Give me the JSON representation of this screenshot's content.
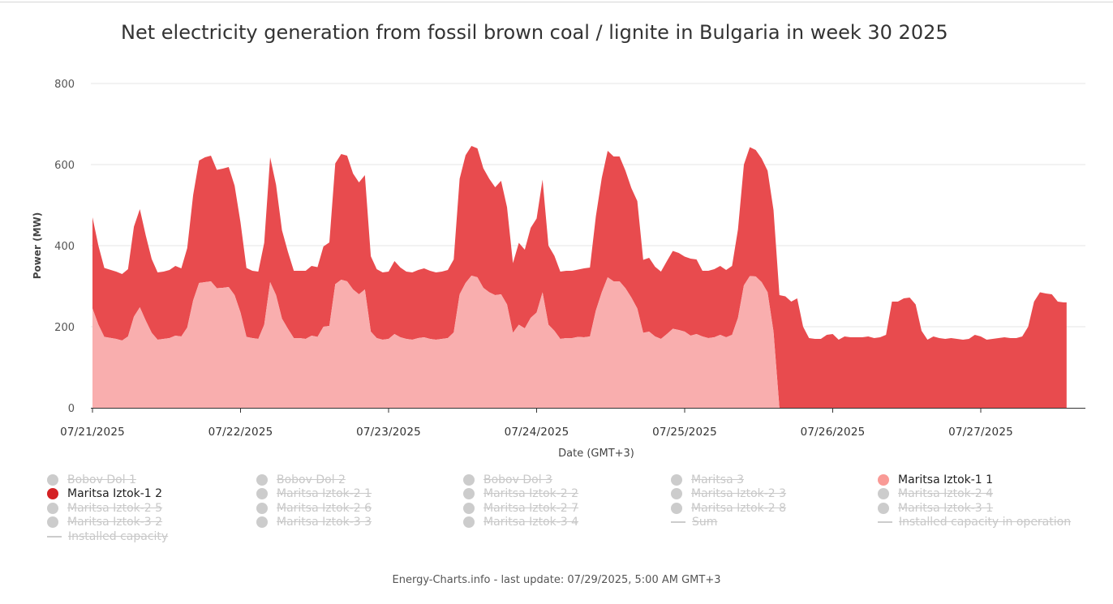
{
  "title": "Net electricity generation from fossil brown coal / lignite in Bulgaria in week 30 2025",
  "footer": "Energy-Charts.info - last update: 07/29/2025, 5:00 AM GMT+3",
  "colors": {
    "Maritsa Iztok-1 1": "#f9aeae",
    "Maritsa Iztok-1 2": "#e84b4e",
    "legend_dot_1_2": "#d42124",
    "inactive": "#cccccc"
  },
  "legend": [
    {
      "label": "Bobov Dol 1",
      "active": false,
      "symbol": "dot"
    },
    {
      "label": "Bobov Dol 2",
      "active": false,
      "symbol": "dot"
    },
    {
      "label": "Bobov Dol 3",
      "active": false,
      "symbol": "dot"
    },
    {
      "label": "Maritsa 3",
      "active": false,
      "symbol": "dot"
    },
    {
      "label": "Maritsa Iztok-1 1",
      "active": true,
      "symbol": "dot",
      "color": "#f99a96"
    },
    {
      "label": "Maritsa Iztok-1 2",
      "active": true,
      "symbol": "dot",
      "color": "#d42124"
    },
    {
      "label": "Maritsa Iztok-2 1",
      "active": false,
      "symbol": "dot"
    },
    {
      "label": "Maritsa Iztok-2 2",
      "active": false,
      "symbol": "dot"
    },
    {
      "label": "Maritsa Iztok-2 3",
      "active": false,
      "symbol": "dot"
    },
    {
      "label": "Maritsa Iztok-2 4",
      "active": false,
      "symbol": "dot"
    },
    {
      "label": "Maritsa Iztok-2 5",
      "active": false,
      "symbol": "dot"
    },
    {
      "label": "Maritsa Iztok-2 6",
      "active": false,
      "symbol": "dot"
    },
    {
      "label": "Maritsa Iztok-2 7",
      "active": false,
      "symbol": "dot"
    },
    {
      "label": "Maritsa Iztok-2 8",
      "active": false,
      "symbol": "dot"
    },
    {
      "label": "Maritsa Iztok-3 1",
      "active": false,
      "symbol": "dot"
    },
    {
      "label": "Maritsa Iztok-3 2",
      "active": false,
      "symbol": "dot"
    },
    {
      "label": "Maritsa Iztok-3 3",
      "active": false,
      "symbol": "dot"
    },
    {
      "label": "Maritsa Iztok-3 4",
      "active": false,
      "symbol": "dot"
    },
    {
      "label": "Sum",
      "active": false,
      "symbol": "line"
    },
    {
      "label": "Installed capacity in operation",
      "active": false,
      "symbol": "line"
    },
    {
      "label": "Installed capacity",
      "active": false,
      "symbol": "line"
    }
  ],
  "chart_data": {
    "type": "area",
    "stacked": true,
    "title": "Net electricity generation from fossil brown coal / lignite in Bulgaria in week 30 2025",
    "xlabel": "Date (GMT+3)",
    "ylabel": "Power (MW)",
    "ylim": [
      0,
      800
    ],
    "yticks": [
      0,
      200,
      400,
      600,
      800
    ],
    "xlim": [
      0,
      6.71
    ],
    "x_unit": "days from 07/21/2025 00:00",
    "x_tick_labels": [
      "07/21/2025",
      "07/22/2025",
      "07/23/2025",
      "07/24/2025",
      "07/25/2025",
      "07/26/2025",
      "07/27/2025"
    ],
    "grid": true,
    "series": [
      {
        "name": "Maritsa Iztok-1 1",
        "points": [
          [
            0.0,
            245
          ],
          [
            0.04,
            205
          ],
          [
            0.08,
            175
          ],
          [
            0.16,
            170
          ],
          [
            0.2,
            166
          ],
          [
            0.24,
            176
          ],
          [
            0.28,
            225
          ],
          [
            0.32,
            248
          ],
          [
            0.36,
            215
          ],
          [
            0.4,
            185
          ],
          [
            0.44,
            168
          ],
          [
            0.48,
            170
          ],
          [
            0.52,
            172
          ],
          [
            0.56,
            178
          ],
          [
            0.6,
            176
          ],
          [
            0.64,
            198
          ],
          [
            0.68,
            265
          ],
          [
            0.72,
            308
          ],
          [
            0.76,
            310
          ],
          [
            0.8,
            312
          ],
          [
            0.84,
            295
          ],
          [
            0.88,
            296
          ],
          [
            0.92,
            298
          ],
          [
            0.96,
            278
          ],
          [
            1.0,
            235
          ],
          [
            1.04,
            175
          ],
          [
            1.08,
            172
          ],
          [
            1.12,
            170
          ],
          [
            1.16,
            205
          ],
          [
            1.2,
            310
          ],
          [
            1.24,
            278
          ],
          [
            1.28,
            220
          ],
          [
            1.32,
            195
          ],
          [
            1.36,
            172
          ],
          [
            1.4,
            172
          ],
          [
            1.44,
            170
          ],
          [
            1.48,
            178
          ],
          [
            1.52,
            175
          ],
          [
            1.56,
            200
          ],
          [
            1.6,
            202
          ],
          [
            1.64,
            305
          ],
          [
            1.68,
            316
          ],
          [
            1.72,
            312
          ],
          [
            1.76,
            292
          ],
          [
            1.8,
            280
          ],
          [
            1.84,
            292
          ],
          [
            1.88,
            188
          ],
          [
            1.92,
            172
          ],
          [
            1.96,
            168
          ],
          [
            2.0,
            170
          ],
          [
            2.04,
            182
          ],
          [
            2.08,
            174
          ],
          [
            2.12,
            170
          ],
          [
            2.16,
            168
          ],
          [
            2.2,
            172
          ],
          [
            2.24,
            174
          ],
          [
            2.28,
            170
          ],
          [
            2.32,
            168
          ],
          [
            2.36,
            170
          ],
          [
            2.4,
            172
          ],
          [
            2.44,
            186
          ],
          [
            2.48,
            280
          ],
          [
            2.52,
            308
          ],
          [
            2.56,
            326
          ],
          [
            2.6,
            322
          ],
          [
            2.64,
            296
          ],
          [
            2.68,
            285
          ],
          [
            2.72,
            278
          ],
          [
            2.76,
            280
          ],
          [
            2.8,
            255
          ],
          [
            2.84,
            185
          ],
          [
            2.88,
            205
          ],
          [
            2.92,
            196
          ],
          [
            2.96,
            222
          ],
          [
            3.0,
            235
          ],
          [
            3.04,
            285
          ],
          [
            3.08,
            205
          ],
          [
            3.12,
            190
          ],
          [
            3.16,
            170
          ],
          [
            3.2,
            172
          ],
          [
            3.24,
            172
          ],
          [
            3.28,
            175
          ],
          [
            3.32,
            174
          ],
          [
            3.36,
            176
          ],
          [
            3.4,
            240
          ],
          [
            3.44,
            285
          ],
          [
            3.48,
            322
          ],
          [
            3.52,
            312
          ],
          [
            3.56,
            312
          ],
          [
            3.6,
            295
          ],
          [
            3.64,
            272
          ],
          [
            3.68,
            245
          ],
          [
            3.72,
            185
          ],
          [
            3.76,
            188
          ],
          [
            3.8,
            176
          ],
          [
            3.84,
            170
          ],
          [
            3.88,
            182
          ],
          [
            3.92,
            195
          ],
          [
            3.96,
            192
          ],
          [
            4.0,
            188
          ],
          [
            4.04,
            178
          ],
          [
            4.08,
            182
          ],
          [
            4.12,
            176
          ],
          [
            4.16,
            172
          ],
          [
            4.2,
            174
          ],
          [
            4.24,
            180
          ],
          [
            4.28,
            174
          ],
          [
            4.32,
            180
          ],
          [
            4.36,
            222
          ],
          [
            4.4,
            302
          ],
          [
            4.44,
            325
          ],
          [
            4.48,
            324
          ],
          [
            4.52,
            310
          ],
          [
            4.56,
            285
          ],
          [
            4.6,
            188
          ],
          [
            4.64,
            0
          ]
        ]
      },
      {
        "name": "Maritsa Iztok-1 2",
        "points": [
          [
            0.0,
            225
          ],
          [
            0.04,
            195
          ],
          [
            0.08,
            170
          ],
          [
            0.16,
            166
          ],
          [
            0.2,
            164
          ],
          [
            0.24,
            166
          ],
          [
            0.28,
            222
          ],
          [
            0.32,
            242
          ],
          [
            0.36,
            210
          ],
          [
            0.4,
            182
          ],
          [
            0.44,
            166
          ],
          [
            0.48,
            166
          ],
          [
            0.52,
            168
          ],
          [
            0.56,
            172
          ],
          [
            0.6,
            168
          ],
          [
            0.64,
            196
          ],
          [
            0.68,
            260
          ],
          [
            0.72,
            302
          ],
          [
            0.76,
            308
          ],
          [
            0.8,
            310
          ],
          [
            0.84,
            292
          ],
          [
            0.88,
            294
          ],
          [
            0.92,
            296
          ],
          [
            0.96,
            270
          ],
          [
            1.0,
            222
          ],
          [
            1.04,
            170
          ],
          [
            1.08,
            166
          ],
          [
            1.12,
            166
          ],
          [
            1.16,
            202
          ],
          [
            1.2,
            308
          ],
          [
            1.24,
            272
          ],
          [
            1.28,
            218
          ],
          [
            1.32,
            190
          ],
          [
            1.36,
            166
          ],
          [
            1.4,
            166
          ],
          [
            1.44,
            168
          ],
          [
            1.48,
            172
          ],
          [
            1.52,
            172
          ],
          [
            1.56,
            198
          ],
          [
            1.6,
            206
          ],
          [
            1.64,
            298
          ],
          [
            1.68,
            310
          ],
          [
            1.72,
            310
          ],
          [
            1.76,
            286
          ],
          [
            1.8,
            276
          ],
          [
            1.84,
            282
          ],
          [
            1.88,
            186
          ],
          [
            1.92,
            170
          ],
          [
            1.96,
            166
          ],
          [
            2.0,
            166
          ],
          [
            2.04,
            180
          ],
          [
            2.08,
            172
          ],
          [
            2.12,
            166
          ],
          [
            2.16,
            166
          ],
          [
            2.2,
            168
          ],
          [
            2.24,
            170
          ],
          [
            2.28,
            168
          ],
          [
            2.32,
            166
          ],
          [
            2.36,
            166
          ],
          [
            2.4,
            168
          ],
          [
            2.44,
            180
          ],
          [
            2.48,
            285
          ],
          [
            2.52,
            315
          ],
          [
            2.56,
            320
          ],
          [
            2.6,
            318
          ],
          [
            2.64,
            295
          ],
          [
            2.68,
            280
          ],
          [
            2.72,
            266
          ],
          [
            2.76,
            280
          ],
          [
            2.8,
            240
          ],
          [
            2.84,
            172
          ],
          [
            2.88,
            202
          ],
          [
            2.92,
            194
          ],
          [
            2.96,
            222
          ],
          [
            3.0,
            232
          ],
          [
            3.04,
            278
          ],
          [
            3.08,
            195
          ],
          [
            3.12,
            185
          ],
          [
            3.16,
            166
          ],
          [
            3.2,
            166
          ],
          [
            3.24,
            166
          ],
          [
            3.28,
            166
          ],
          [
            3.32,
            170
          ],
          [
            3.36,
            170
          ],
          [
            3.4,
            232
          ],
          [
            3.44,
            282
          ],
          [
            3.48,
            312
          ],
          [
            3.52,
            308
          ],
          [
            3.56,
            308
          ],
          [
            3.6,
            290
          ],
          [
            3.64,
            270
          ],
          [
            3.68,
            265
          ],
          [
            3.72,
            180
          ],
          [
            3.76,
            182
          ],
          [
            3.8,
            172
          ],
          [
            3.84,
            166
          ],
          [
            3.88,
            180
          ],
          [
            3.92,
            192
          ],
          [
            3.96,
            190
          ],
          [
            4.0,
            185
          ],
          [
            4.04,
            190
          ],
          [
            4.08,
            184
          ],
          [
            4.12,
            162
          ],
          [
            4.16,
            166
          ],
          [
            4.2,
            168
          ],
          [
            4.24,
            170
          ],
          [
            4.28,
            166
          ],
          [
            4.32,
            170
          ],
          [
            4.36,
            218
          ],
          [
            4.4,
            298
          ],
          [
            4.44,
            318
          ],
          [
            4.48,
            312
          ],
          [
            4.52,
            305
          ],
          [
            4.56,
            300
          ],
          [
            4.6,
            300
          ],
          [
            4.64,
            278
          ],
          [
            4.68,
            275
          ],
          [
            4.72,
            262
          ],
          [
            4.76,
            270
          ],
          [
            4.8,
            200
          ],
          [
            4.84,
            172
          ],
          [
            4.88,
            170
          ],
          [
            4.92,
            170
          ],
          [
            4.96,
            180
          ],
          [
            5.0,
            182
          ],
          [
            5.04,
            168
          ],
          [
            5.08,
            176
          ],
          [
            5.12,
            174
          ],
          [
            5.16,
            174
          ],
          [
            5.2,
            174
          ],
          [
            5.24,
            176
          ],
          [
            5.28,
            172
          ],
          [
            5.32,
            174
          ],
          [
            5.36,
            180
          ],
          [
            5.4,
            262
          ],
          [
            5.44,
            262
          ],
          [
            5.48,
            270
          ],
          [
            5.52,
            272
          ],
          [
            5.56,
            255
          ],
          [
            5.6,
            190
          ],
          [
            5.64,
            168
          ],
          [
            5.68,
            176
          ],
          [
            5.72,
            172
          ],
          [
            5.76,
            170
          ],
          [
            5.8,
            172
          ],
          [
            5.84,
            170
          ],
          [
            5.88,
            168
          ],
          [
            5.92,
            170
          ],
          [
            5.96,
            180
          ],
          [
            6.0,
            176
          ],
          [
            6.04,
            168
          ],
          [
            6.08,
            170
          ],
          [
            6.12,
            172
          ],
          [
            6.16,
            174
          ],
          [
            6.2,
            172
          ],
          [
            6.24,
            172
          ],
          [
            6.28,
            176
          ],
          [
            6.32,
            200
          ],
          [
            6.36,
            262
          ],
          [
            6.4,
            285
          ],
          [
            6.44,
            282
          ],
          [
            6.48,
            280
          ],
          [
            6.52,
            262
          ],
          [
            6.56,
            260
          ],
          [
            6.58,
            260
          ]
        ]
      }
    ]
  }
}
